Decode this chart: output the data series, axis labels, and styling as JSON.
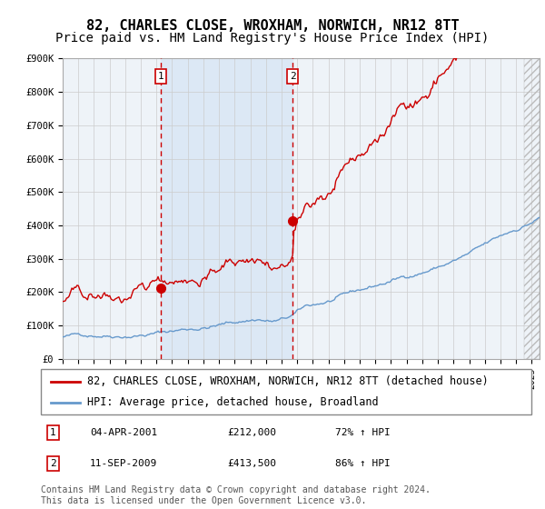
{
  "title": "82, CHARLES CLOSE, WROXHAM, NORWICH, NR12 8TT",
  "subtitle": "Price paid vs. HM Land Registry's House Price Index (HPI)",
  "legend_line1": "82, CHARLES CLOSE, WROXHAM, NORWICH, NR12 8TT (detached house)",
  "legend_line2": "HPI: Average price, detached house, Broadland",
  "annotation1_date": "04-APR-2001",
  "annotation1_price": "£212,000",
  "annotation1_hpi": "72% ↑ HPI",
  "annotation2_date": "11-SEP-2009",
  "annotation2_price": "£413,500",
  "annotation2_hpi": "86% ↑ HPI",
  "footnote": "Contains HM Land Registry data © Crown copyright and database right 2024.\nThis data is licensed under the Open Government Licence v3.0.",
  "red_color": "#cc0000",
  "blue_color": "#6699cc",
  "background_color": "#ffffff",
  "plot_bg_color": "#eef3f8",
  "shaded_region_color": "#dce8f5",
  "grid_color": "#cccccc",
  "ylim": [
    0,
    900000
  ],
  "y_ticks": [
    0,
    100000,
    200000,
    300000,
    400000,
    500000,
    600000,
    700000,
    800000,
    900000
  ],
  "y_tick_labels": [
    "£0",
    "£100K",
    "£200K",
    "£300K",
    "£400K",
    "£500K",
    "£600K",
    "£700K",
    "£800K",
    "£900K"
  ],
  "purchase1_date_num": 2001.26,
  "purchase1_price": 212000,
  "purchase2_date_num": 2009.7,
  "purchase2_price": 413500,
  "start_year": 1995,
  "end_year": 2025,
  "xlim_min": 1995,
  "xlim_max": 2025.5,
  "title_fontsize": 11,
  "subtitle_fontsize": 10,
  "tick_fontsize": 7.5,
  "legend_fontsize": 8.5,
  "annotation_fontsize": 8,
  "footnote_fontsize": 7
}
